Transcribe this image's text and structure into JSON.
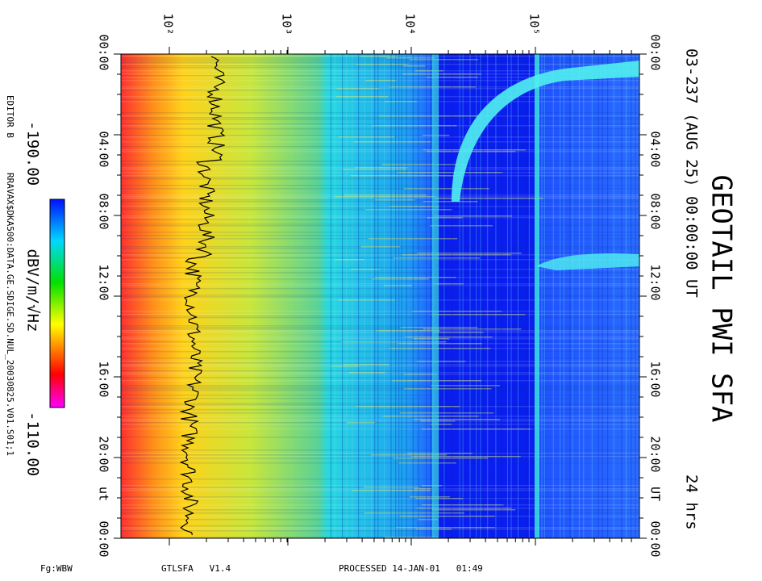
{
  "header": {
    "title": "GEOTAIL PWI SFA",
    "date_line": "03-237 (AUG 25) 00:00:00 UT",
    "duration": "24 hrs"
  },
  "frequency_axis": {
    "labels": [
      "10²",
      "10³",
      "10⁴",
      "10⁵"
    ]
  },
  "time_axis": {
    "labels": [
      "00:00",
      "04:00",
      "08:00",
      "12:00",
      "16:00",
      "20:00",
      "00:00"
    ],
    "unit_right": "UT",
    "unit_left": "ut"
  },
  "colorbar": {
    "min_label": "-190.00",
    "max_label": "-110.00",
    "unit": "dBV/m/√Hz"
  },
  "side": {
    "editor": "EDITOR B",
    "file": "RRAVAX$DKA500:DATA.GE.SDIGE.SD.NUL_20030825.V01.S01;1"
  },
  "footer": {
    "figure": "Fg:WBW",
    "program": "GTLSFA   V1.4",
    "processed": "PROCESSED 14-JAN-01   01:49"
  }
}
